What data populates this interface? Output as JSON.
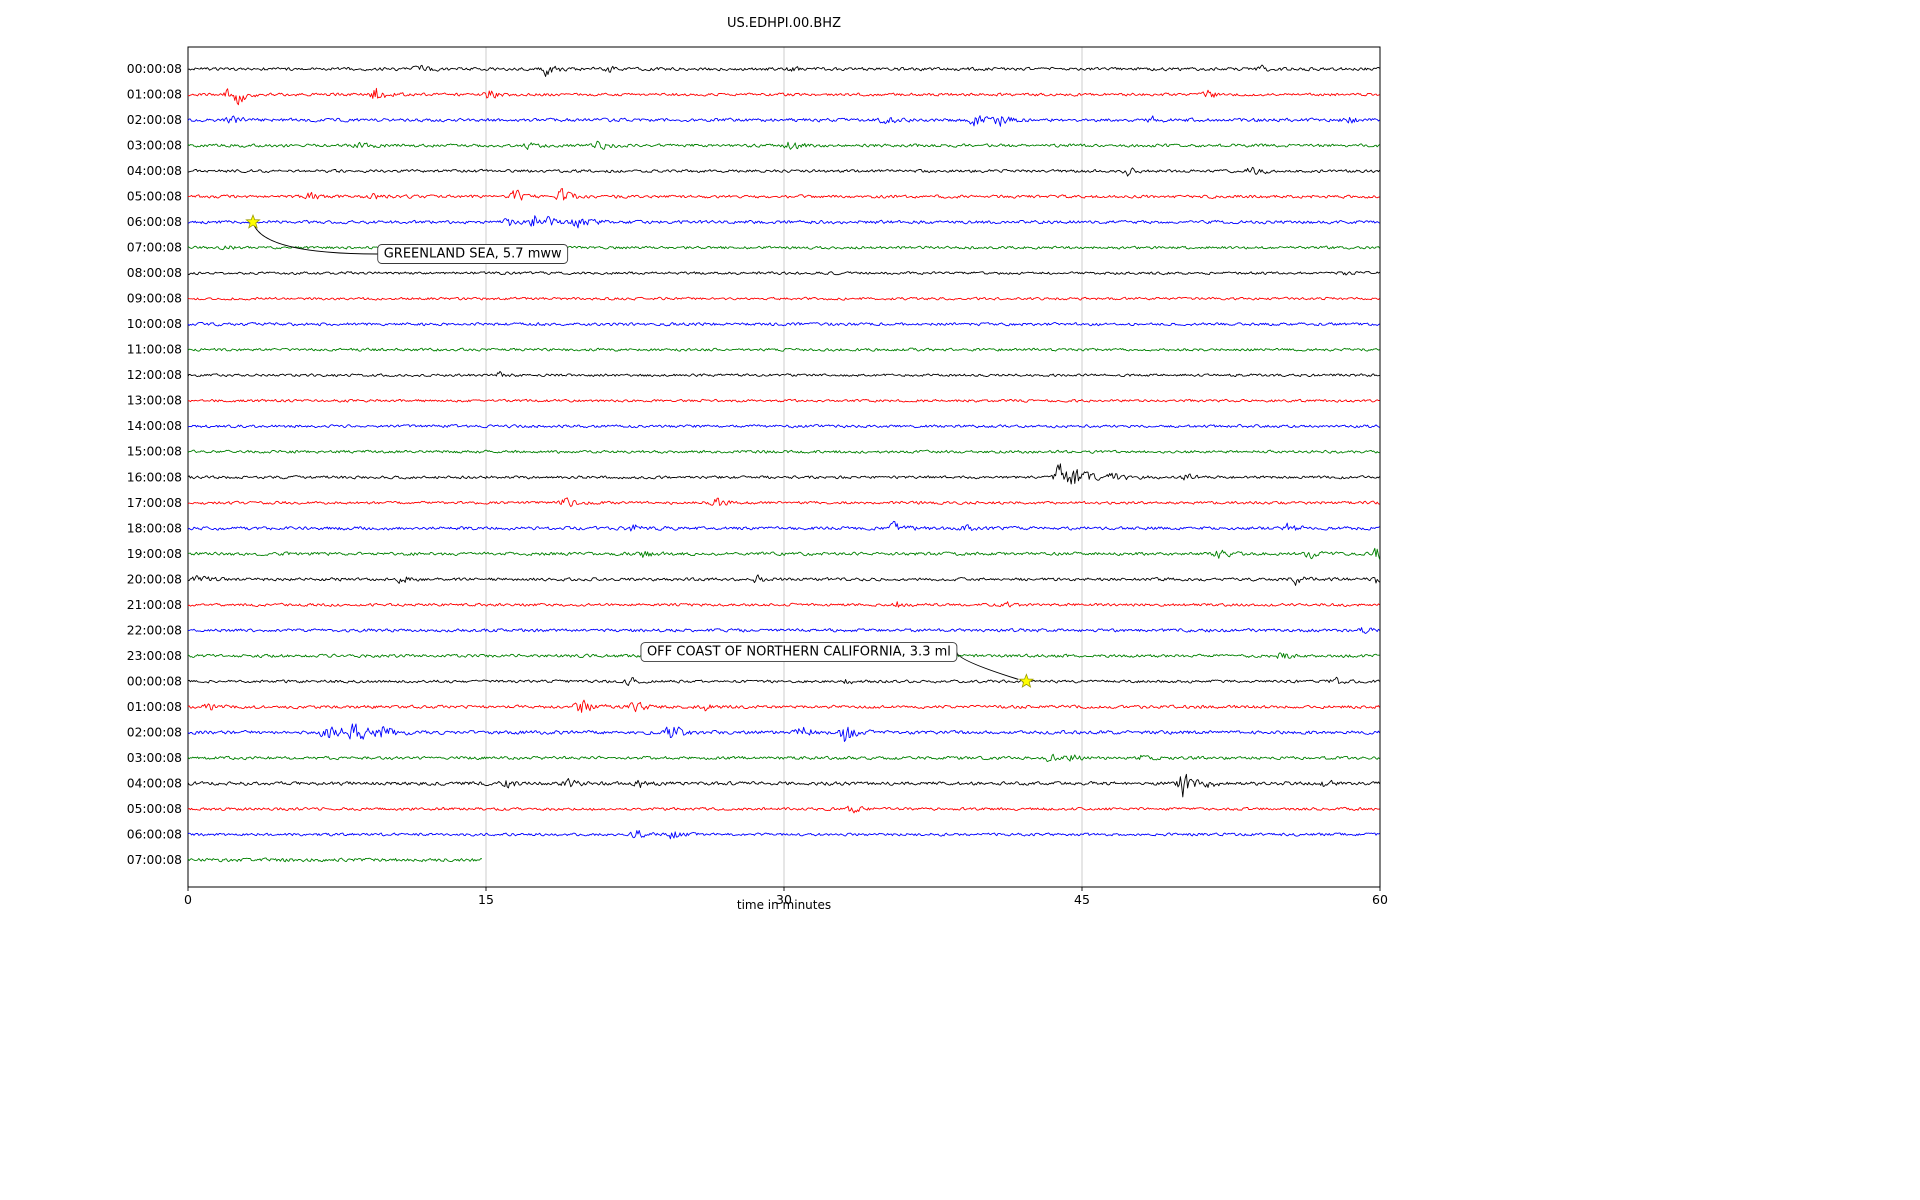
{
  "title": "US.EDHPI.00.BHZ",
  "chart_data": {
    "type": "line",
    "subtype": "helicorder-seismogram",
    "title": "US.EDHPI.00.BHZ",
    "xlabel": "time in minutes",
    "xlim": [
      0,
      60
    ],
    "xticks": [
      0,
      15,
      30,
      45,
      60
    ],
    "grid_x": [
      15,
      30,
      45
    ],
    "colors": {
      "black": "#000000",
      "red": "#ff0000",
      "blue": "#0000ff",
      "green": "#008000",
      "grid": "#c8c8c8",
      "axis": "#000000",
      "star_fill": "#ffff00",
      "star_edge": "#9c9b00"
    },
    "rows": [
      {
        "label": "00:00:08",
        "color": "black",
        "base": 1.4,
        "end": 60,
        "bursts": [
          {
            "x": 11.7,
            "w": 0.4,
            "a": 4
          },
          {
            "x": 18.0,
            "w": 0.5,
            "a": 5
          },
          {
            "x": 21.2,
            "w": 0.3,
            "a": 2.5
          },
          {
            "x": 30.5,
            "w": 0.3,
            "a": 2
          },
          {
            "x": 54.2,
            "w": 0.3,
            "a": 2.5
          }
        ]
      },
      {
        "label": "01:00:08",
        "color": "red",
        "base": 1.3,
        "end": 60,
        "bursts": [
          {
            "x": 2.1,
            "w": 0.5,
            "a": 6.5
          },
          {
            "x": 2.6,
            "w": 0.3,
            "a": 5
          },
          {
            "x": 9.5,
            "w": 0.4,
            "a": 6
          },
          {
            "x": 15.2,
            "w": 0.3,
            "a": 4.5
          },
          {
            "x": 51.3,
            "w": 0.4,
            "a": 4
          }
        ]
      },
      {
        "label": "02:00:08",
        "color": "blue",
        "base": 1.5,
        "end": 60,
        "bursts": [
          {
            "x": 2.2,
            "w": 0.4,
            "a": 3.5
          },
          {
            "x": 35.1,
            "w": 0.5,
            "a": 3
          },
          {
            "x": 39.6,
            "w": 0.8,
            "a": 4
          },
          {
            "x": 40.9,
            "w": 0.4,
            "a": 3.5
          },
          {
            "x": 48.6,
            "w": 0.3,
            "a": 3
          },
          {
            "x": 58.5,
            "w": 0.3,
            "a": 2.5
          }
        ]
      },
      {
        "label": "03:00:08",
        "color": "green",
        "base": 1.4,
        "end": 60,
        "bursts": [
          {
            "x": 8.7,
            "w": 0.6,
            "a": 3
          },
          {
            "x": 17.2,
            "w": 0.3,
            "a": 2.5
          },
          {
            "x": 20.7,
            "w": 0.4,
            "a": 3.5
          },
          {
            "x": 30.3,
            "w": 0.5,
            "a": 3.5
          }
        ]
      },
      {
        "label": "04:00:08",
        "color": "black",
        "base": 1.3,
        "end": 60,
        "bursts": [
          {
            "x": 47.3,
            "w": 0.3,
            "a": 3.5
          },
          {
            "x": 53.6,
            "w": 0.4,
            "a": 4.5
          }
        ]
      },
      {
        "label": "05:00:08",
        "color": "red",
        "base": 1.4,
        "end": 60,
        "bursts": [
          {
            "x": 6.2,
            "w": 0.3,
            "a": 3.5
          },
          {
            "x": 9.3,
            "w": 0.3,
            "a": 3
          },
          {
            "x": 16.5,
            "w": 0.4,
            "a": 5
          },
          {
            "x": 18.8,
            "w": 0.5,
            "a": 5.5
          }
        ]
      },
      {
        "label": "06:00:08",
        "color": "blue",
        "base": 1.5,
        "end": 60,
        "bursts": [
          {
            "x": 16.2,
            "w": 0.3,
            "a": 4
          },
          {
            "x": 17.6,
            "w": 0.5,
            "a": 11
          },
          {
            "x": 19.6,
            "w": 0.7,
            "a": 4
          }
        ]
      },
      {
        "label": "07:00:08",
        "color": "green",
        "base": 1.25,
        "end": 60,
        "bursts": [
          {
            "x": 2.0,
            "w": 0.3,
            "a": 1.5
          }
        ]
      },
      {
        "label": "08:00:08",
        "color": "black",
        "base": 1.2,
        "end": 60,
        "bursts": [
          {
            "x": 58.2,
            "w": 0.3,
            "a": 2
          }
        ]
      },
      {
        "label": "09:00:08",
        "color": "red",
        "base": 1.2,
        "end": 60,
        "bursts": []
      },
      {
        "label": "10:00:08",
        "color": "blue",
        "base": 1.35,
        "end": 60,
        "bursts": []
      },
      {
        "label": "11:00:08",
        "color": "green",
        "base": 1.25,
        "end": 60,
        "bursts": []
      },
      {
        "label": "12:00:08",
        "color": "black",
        "base": 1.2,
        "end": 60,
        "bursts": [
          {
            "x": 15.7,
            "w": 0.3,
            "a": 2.5
          }
        ]
      },
      {
        "label": "13:00:08",
        "color": "red",
        "base": 1.2,
        "end": 60,
        "bursts": []
      },
      {
        "label": "14:00:08",
        "color": "blue",
        "base": 1.3,
        "end": 60,
        "bursts": []
      },
      {
        "label": "15:00:08",
        "color": "green",
        "base": 1.3,
        "end": 60,
        "bursts": []
      },
      {
        "label": "16:00:08",
        "color": "black",
        "base": 1.3,
        "end": 60,
        "bursts": [
          {
            "x": 43.9,
            "w": 0.5,
            "a": 12
          },
          {
            "x": 44.6,
            "w": 0.8,
            "a": 5
          },
          {
            "x": 46.6,
            "w": 0.6,
            "a": 3.5
          },
          {
            "x": 50.3,
            "w": 0.3,
            "a": 2.5
          }
        ]
      },
      {
        "label": "17:00:08",
        "color": "red",
        "base": 1.3,
        "end": 60,
        "bursts": [
          {
            "x": 18.9,
            "w": 0.4,
            "a": 6
          },
          {
            "x": 26.6,
            "w": 0.4,
            "a": 5
          }
        ]
      },
      {
        "label": "18:00:08",
        "color": "blue",
        "base": 1.5,
        "end": 60,
        "bursts": [
          {
            "x": 22.4,
            "w": 0.5,
            "a": 3.5
          },
          {
            "x": 35.6,
            "w": 0.5,
            "a": 4.5
          },
          {
            "x": 39.2,
            "w": 0.3,
            "a": 3
          },
          {
            "x": 55.4,
            "w": 0.4,
            "a": 3.5
          }
        ]
      },
      {
        "label": "19:00:08",
        "color": "green",
        "base": 1.5,
        "end": 60,
        "bursts": [
          {
            "x": 22.9,
            "w": 0.4,
            "a": 3
          },
          {
            "x": 51.9,
            "w": 0.4,
            "a": 3
          },
          {
            "x": 56.5,
            "w": 0.4,
            "a": 3.5
          },
          {
            "x": 59.9,
            "w": 0.25,
            "a": 9
          }
        ]
      },
      {
        "label": "20:00:08",
        "color": "black",
        "base": 1.4,
        "end": 60,
        "bursts": [
          {
            "x": 0.5,
            "w": 0.5,
            "a": 2.5
          },
          {
            "x": 10.8,
            "w": 0.4,
            "a": 3
          },
          {
            "x": 28.6,
            "w": 0.3,
            "a": 3.5
          },
          {
            "x": 55.8,
            "w": 0.4,
            "a": 4
          },
          {
            "x": 59.8,
            "w": 0.3,
            "a": 3
          }
        ]
      },
      {
        "label": "21:00:08",
        "color": "red",
        "base": 1.3,
        "end": 60,
        "bursts": [
          {
            "x": 35.8,
            "w": 0.3,
            "a": 3.5
          },
          {
            "x": 41.2,
            "w": 0.3,
            "a": 2
          }
        ]
      },
      {
        "label": "22:00:08",
        "color": "blue",
        "base": 1.45,
        "end": 60,
        "bursts": [
          {
            "x": 59.2,
            "w": 0.3,
            "a": 3
          }
        ]
      },
      {
        "label": "23:00:08",
        "color": "green",
        "base": 1.4,
        "end": 60,
        "bursts": [
          {
            "x": 30.2,
            "w": 0.3,
            "a": 2
          },
          {
            "x": 55.1,
            "w": 0.4,
            "a": 3
          }
        ]
      },
      {
        "label": "00:00:08",
        "color": "black",
        "base": 1.3,
        "end": 60,
        "bursts": [
          {
            "x": 22.3,
            "w": 0.3,
            "a": 3
          },
          {
            "x": 33.2,
            "w": 0.3,
            "a": 2
          },
          {
            "x": 57.8,
            "w": 0.3,
            "a": 3
          }
        ]
      },
      {
        "label": "01:00:08",
        "color": "red",
        "base": 1.4,
        "end": 60,
        "bursts": [
          {
            "x": 1.0,
            "w": 0.4,
            "a": 3
          },
          {
            "x": 19.7,
            "w": 0.7,
            "a": 6
          },
          {
            "x": 22.4,
            "w": 0.5,
            "a": 5
          },
          {
            "x": 26.1,
            "w": 0.3,
            "a": 3
          }
        ]
      },
      {
        "label": "02:00:08",
        "color": "blue",
        "base": 1.6,
        "end": 60,
        "bursts": [
          {
            "x": 7.0,
            "w": 0.8,
            "a": 8
          },
          {
            "x": 8.4,
            "w": 0.6,
            "a": 7
          },
          {
            "x": 9.7,
            "w": 0.5,
            "a": 6
          },
          {
            "x": 24.3,
            "w": 0.5,
            "a": 7
          },
          {
            "x": 30.9,
            "w": 0.4,
            "a": 6
          },
          {
            "x": 33.1,
            "w": 0.4,
            "a": 10
          }
        ]
      },
      {
        "label": "03:00:08",
        "color": "green",
        "base": 1.4,
        "end": 60,
        "bursts": [
          {
            "x": 43.4,
            "w": 0.5,
            "a": 3
          },
          {
            "x": 44.6,
            "w": 0.3,
            "a": 3
          },
          {
            "x": 48.1,
            "w": 0.3,
            "a": 2.5
          }
        ]
      },
      {
        "label": "04:00:08",
        "color": "black",
        "base": 1.6,
        "end": 60,
        "bursts": [
          {
            "x": 16.1,
            "w": 0.4,
            "a": 3
          },
          {
            "x": 19.1,
            "w": 0.4,
            "a": 3.5
          },
          {
            "x": 22.8,
            "w": 0.3,
            "a": 3
          },
          {
            "x": 50.1,
            "w": 0.35,
            "a": 13
          },
          {
            "x": 51.2,
            "w": 0.5,
            "a": 4
          },
          {
            "x": 57.3,
            "w": 0.3,
            "a": 3
          }
        ]
      },
      {
        "label": "05:00:08",
        "color": "red",
        "base": 1.3,
        "end": 60,
        "bursts": [
          {
            "x": 33.5,
            "w": 0.3,
            "a": 4
          }
        ]
      },
      {
        "label": "06:00:08",
        "color": "blue",
        "base": 1.3,
        "end": 60,
        "bursts": [
          {
            "x": 22.6,
            "w": 0.4,
            "a": 3.5
          },
          {
            "x": 24.4,
            "w": 0.4,
            "a": 3.5
          }
        ]
      },
      {
        "label": "07:00:08",
        "color": "green",
        "base": 1.6,
        "end": 14.8,
        "bursts": []
      }
    ],
    "events": [
      {
        "label": "GREENLAND SEA, 5.7 mww",
        "row": 6,
        "x_min": 3.27,
        "label_x_min": 9.55,
        "label_row": 7.25,
        "side": "left"
      },
      {
        "label": "OFF COAST OF NORTHERN CALIFORNIA, 3.3 ml",
        "row": 24,
        "x_min": 42.2,
        "label_x_min": 22.8,
        "label_row": 22.85,
        "side": "right"
      }
    ]
  }
}
